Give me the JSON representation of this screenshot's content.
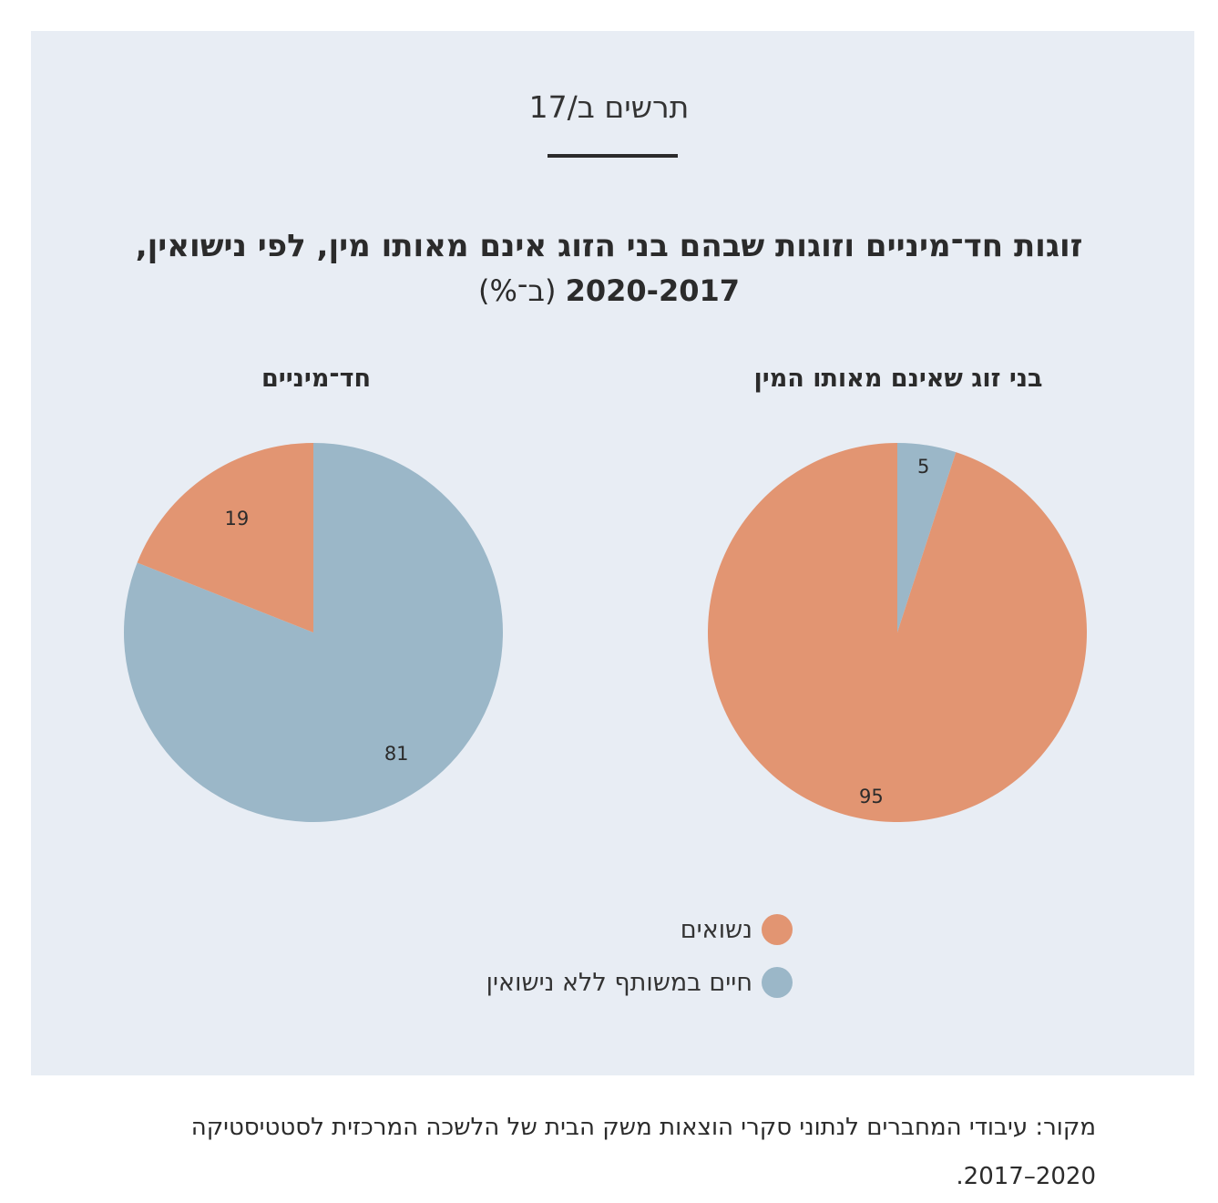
{
  "figure_label": "תרשים ב/17",
  "title": {
    "line1": "זוגות חד־מיניים וזוגות שבהם בני הזוג אינם מאותו מין, לפי נישואין,",
    "years": "2020-2017",
    "unit": "(ב־%)"
  },
  "colors": {
    "married": "#e29572",
    "cohabiting": "#9bb7c8",
    "panel": "#e8edf4"
  },
  "chart_data": [
    {
      "type": "pie",
      "title": "חד־מיניים",
      "categories": [
        "חיים במשותף ללא נישואין",
        "נשואים"
      ],
      "values": [
        81,
        19
      ],
      "data_labels": [
        "81",
        "19"
      ]
    },
    {
      "type": "pie",
      "title": "בני זוג שאינם מאותו המין",
      "categories": [
        "חיים במשותף ללא נישואין",
        "נשואים"
      ],
      "values": [
        5,
        95
      ],
      "data_labels": [
        "5",
        "95"
      ]
    }
  ],
  "legend": [
    {
      "label": "נשואים",
      "color": "#e29572"
    },
    {
      "label": "חיים במשותף ללא נישואין",
      "color": "#9bb7c8"
    }
  ],
  "source": {
    "line1": "מקור: עיבודי המחברים לנתוני סקרי הוצאות משק הבית של הלשכה המרכזית לסטטיסטיקה",
    "line2": "2020–2017."
  }
}
